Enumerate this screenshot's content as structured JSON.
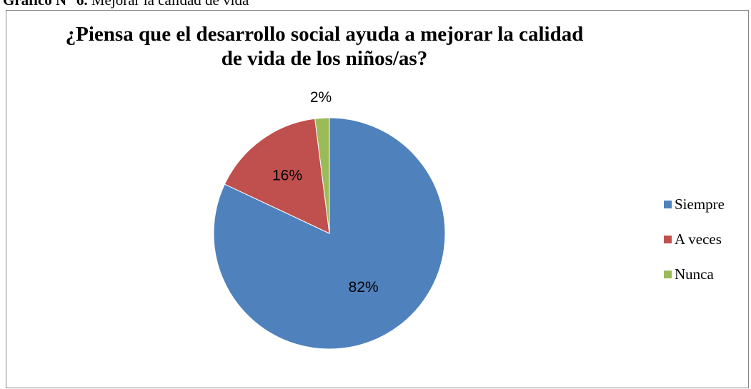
{
  "caption": {
    "bold": "Gráfico N° 6.",
    "text": " Mejorar la calidad de vida"
  },
  "chart_data": {
    "type": "pie",
    "title_lines": [
      "¿Piensa que el desarrollo social ayuda a mejorar la calidad",
      "de vida de los niños/as?"
    ],
    "legend_position": "right",
    "categories": [
      "Siempre",
      "A veces",
      "Nunca"
    ],
    "values": [
      82,
      16,
      2
    ],
    "labels": [
      "82%",
      "16%",
      "2%"
    ],
    "colors": [
      "#4F81BD",
      "#C0504D",
      "#9BBB59"
    ]
  }
}
